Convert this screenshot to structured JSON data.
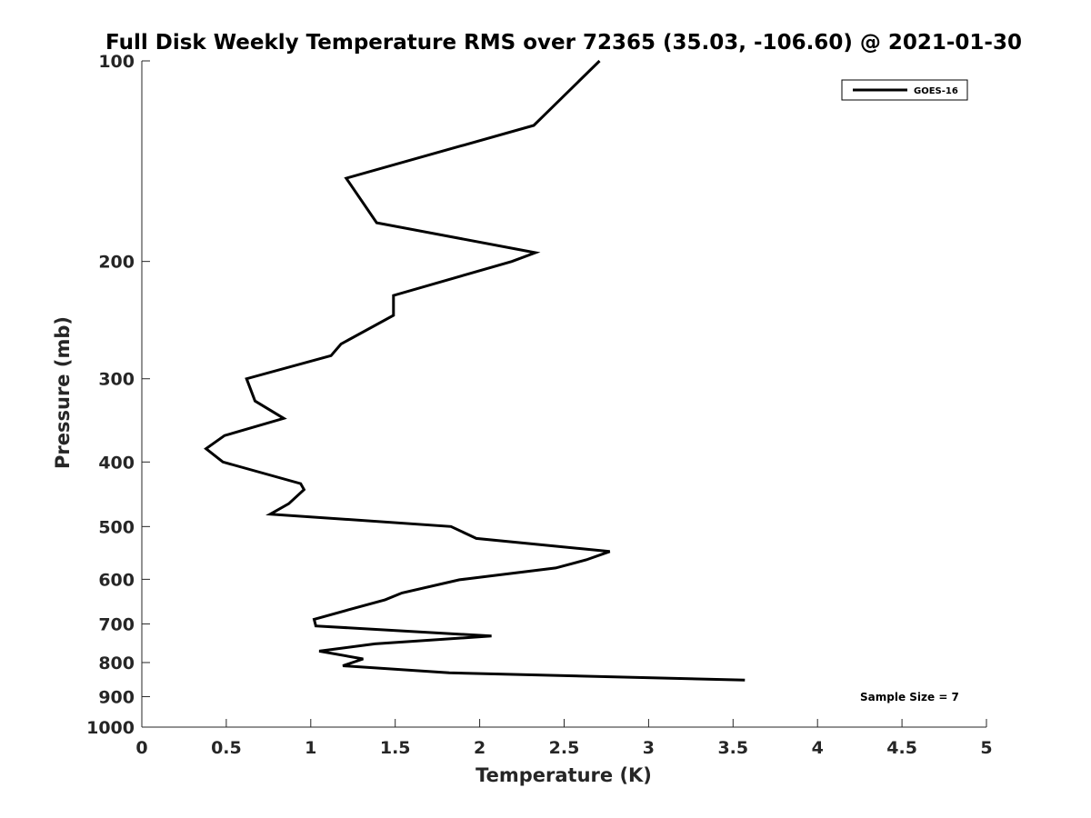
{
  "chart_data": {
    "type": "line",
    "title": "Full Disk Weekly Temperature RMS over 72365 (35.03, -106.60) @ 2021-01-30",
    "xlabel": "Temperature (K)",
    "ylabel": "Pressure (mb)",
    "xlim": [
      0,
      5
    ],
    "ylim": [
      100,
      1000
    ],
    "y_scale": "log",
    "y_reversed": true,
    "x_ticks": [
      "0",
      "0.5",
      "1",
      "1.5",
      "2",
      "2.5",
      "3",
      "3.5",
      "4",
      "4.5",
      "5"
    ],
    "y_ticks": [
      "100",
      "200",
      "300",
      "400",
      "500",
      "600",
      "700",
      "800",
      "900",
      "1000"
    ],
    "grid": false,
    "legend": {
      "position": "top-right",
      "entries": [
        "GOES-16"
      ]
    },
    "annotation": "Sample Size = 7",
    "series": [
      {
        "name": "GOES-16",
        "color": "#000000",
        "points": [
          [
            2.71,
            100
          ],
          [
            2.32,
            125
          ],
          [
            1.21,
            150
          ],
          [
            1.39,
            175
          ],
          [
            2.33,
            194
          ],
          [
            2.19,
            200
          ],
          [
            1.49,
            225
          ],
          [
            1.49,
            241
          ],
          [
            1.18,
            266
          ],
          [
            1.12,
            277
          ],
          [
            0.62,
            300
          ],
          [
            0.67,
            324
          ],
          [
            0.84,
            344
          ],
          [
            0.49,
            365
          ],
          [
            0.38,
            382
          ],
          [
            0.48,
            400
          ],
          [
            0.94,
            431
          ],
          [
            0.96,
            440
          ],
          [
            0.87,
            462
          ],
          [
            0.76,
            479
          ],
          [
            1.83,
            500
          ],
          [
            1.98,
            521
          ],
          [
            2.77,
            545
          ],
          [
            2.63,
            561
          ],
          [
            2.45,
            577
          ],
          [
            1.88,
            601
          ],
          [
            1.54,
            629
          ],
          [
            1.44,
            644
          ],
          [
            1.22,
            667
          ],
          [
            1.02,
            689
          ],
          [
            1.03,
            705
          ],
          [
            2.07,
            730
          ],
          [
            1.38,
            750
          ],
          [
            1.05,
            769
          ],
          [
            1.31,
            790
          ],
          [
            1.19,
            809
          ],
          [
            1.82,
            829
          ],
          [
            3.57,
            850
          ]
        ]
      }
    ]
  }
}
